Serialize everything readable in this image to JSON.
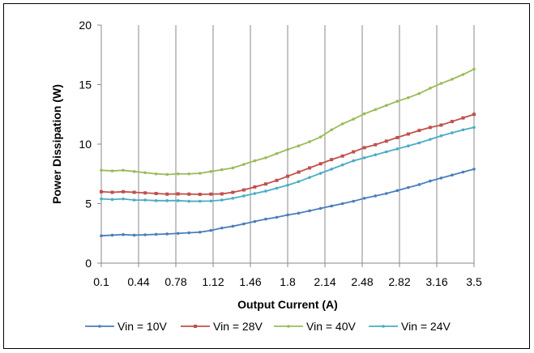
{
  "chart_data": {
    "type": "line",
    "title": "",
    "xlabel": "Output Current (A)",
    "ylabel": "Power Dissipation (W)",
    "xlim": [
      0.1,
      3.5
    ],
    "ylim": [
      0,
      20
    ],
    "x_ticks": [
      "0.1",
      "0.44",
      "0.78",
      "1.12",
      "1.46",
      "1.8",
      "2.14",
      "2.48",
      "2.82",
      "3.16",
      "3.5"
    ],
    "y_ticks": [
      "0",
      "5",
      "10",
      "15",
      "20"
    ],
    "grid": "vertical",
    "legend_position": "bottom",
    "x": [
      0.1,
      0.2,
      0.3,
      0.4,
      0.5,
      0.6,
      0.7,
      0.8,
      0.9,
      1.0,
      1.1,
      1.2,
      1.3,
      1.4,
      1.5,
      1.6,
      1.7,
      1.8,
      1.9,
      2.0,
      2.1,
      2.2,
      2.3,
      2.4,
      2.5,
      2.6,
      2.7,
      2.8,
      2.9,
      3.0,
      3.1,
      3.2,
      3.3,
      3.4,
      3.5
    ],
    "series": [
      {
        "name": "Vin = 10V",
        "color": "#4a7ebb",
        "marker": "dot",
        "values": [
          2.3,
          2.35,
          2.4,
          2.35,
          2.38,
          2.42,
          2.45,
          2.5,
          2.55,
          2.6,
          2.75,
          2.95,
          3.1,
          3.3,
          3.5,
          3.7,
          3.85,
          4.05,
          4.2,
          4.4,
          4.6,
          4.8,
          5.0,
          5.2,
          5.45,
          5.65,
          5.85,
          6.1,
          6.35,
          6.6,
          6.9,
          7.15,
          7.4,
          7.65,
          7.9
        ]
      },
      {
        "name": "Vin = 28V",
        "color": "#c0504d",
        "marker": "square",
        "values": [
          6.0,
          5.95,
          6.0,
          5.95,
          5.9,
          5.85,
          5.8,
          5.82,
          5.8,
          5.78,
          5.8,
          5.82,
          5.95,
          6.15,
          6.4,
          6.65,
          6.95,
          7.3,
          7.65,
          8.0,
          8.35,
          8.7,
          9.0,
          9.35,
          9.7,
          9.95,
          10.25,
          10.55,
          10.85,
          11.15,
          11.4,
          11.6,
          11.9,
          12.2,
          12.5
        ]
      },
      {
        "name": "Vin = 40V",
        "color": "#9bbb59",
        "marker": "dot",
        "values": [
          7.8,
          7.75,
          7.8,
          7.7,
          7.6,
          7.5,
          7.45,
          7.5,
          7.5,
          7.55,
          7.7,
          7.85,
          8.0,
          8.3,
          8.6,
          8.85,
          9.2,
          9.55,
          9.85,
          10.2,
          10.6,
          11.2,
          11.7,
          12.1,
          12.55,
          12.9,
          13.25,
          13.6,
          13.9,
          14.25,
          14.7,
          15.1,
          15.45,
          15.85,
          16.3
        ]
      },
      {
        "name": "Vin = 24V",
        "color": "#4bacc6",
        "marker": "dot",
        "values": [
          5.4,
          5.35,
          5.4,
          5.3,
          5.3,
          5.25,
          5.25,
          5.25,
          5.2,
          5.2,
          5.22,
          5.3,
          5.45,
          5.65,
          5.85,
          6.05,
          6.3,
          6.55,
          6.85,
          7.2,
          7.55,
          7.9,
          8.25,
          8.6,
          8.85,
          9.1,
          9.35,
          9.6,
          9.85,
          10.1,
          10.4,
          10.7,
          10.95,
          11.2,
          11.4
        ]
      }
    ]
  }
}
